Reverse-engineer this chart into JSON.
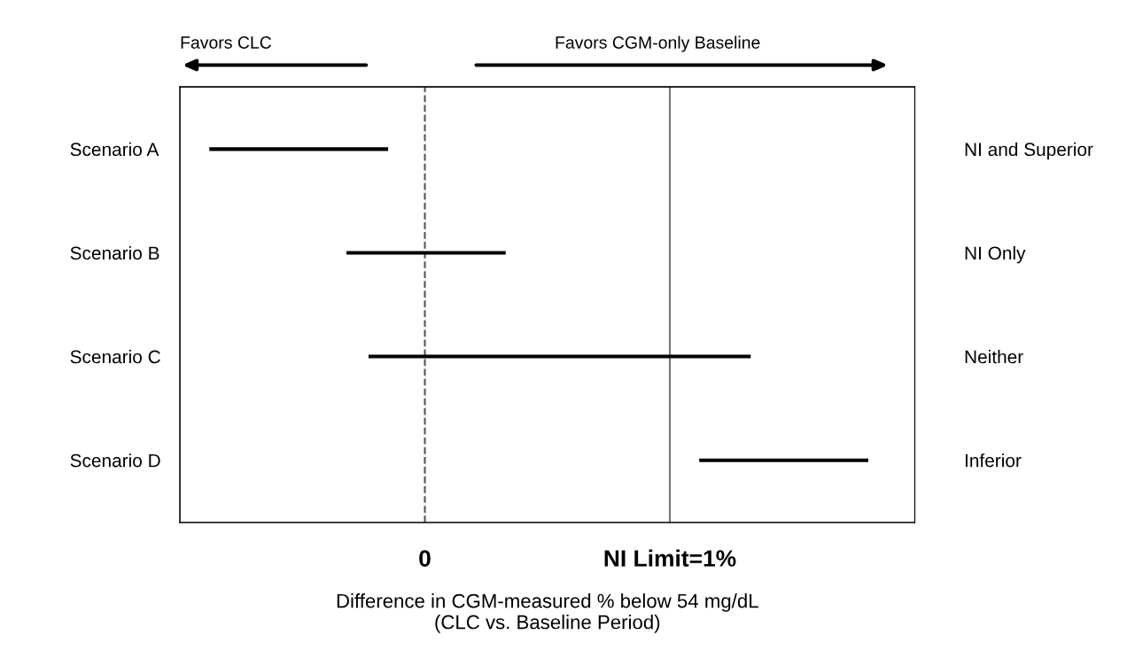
{
  "chart_data": {
    "type": "bar",
    "orientation": "horizontal",
    "categories": [
      "Scenario A",
      "Scenario B",
      "Scenario C",
      "Scenario D"
    ],
    "y2_categories": [
      "NI and Superior",
      "NI Only",
      "Neither",
      "Inferior"
    ],
    "base": [
      -0.88,
      -0.32,
      -0.23,
      1.12
    ],
    "values": [
      0.73,
      0.65,
      1.56,
      0.69
    ],
    "color": "#000000",
    "xlim": [
      -1,
      2
    ],
    "xticks": [
      0,
      {
        "value": 1,
        "label": "NI Limit=1%"
      }
    ],
    "xlabel": "Difference in CGM-measured % below 54 mg/dL\n(CLC vs. Baseline Period)",
    "ref_lines": [
      {
        "axis": "x",
        "value": 0,
        "color": "#555555",
        "line_style": "dashed"
      },
      {
        "axis": "x",
        "value": 1,
        "color": "#777777",
        "line_style": "solid"
      }
    ],
    "annotations": [
      "Favors CLC",
      "Favors CGM-only Baseline"
    ],
    "grid": false,
    "legend": false
  }
}
